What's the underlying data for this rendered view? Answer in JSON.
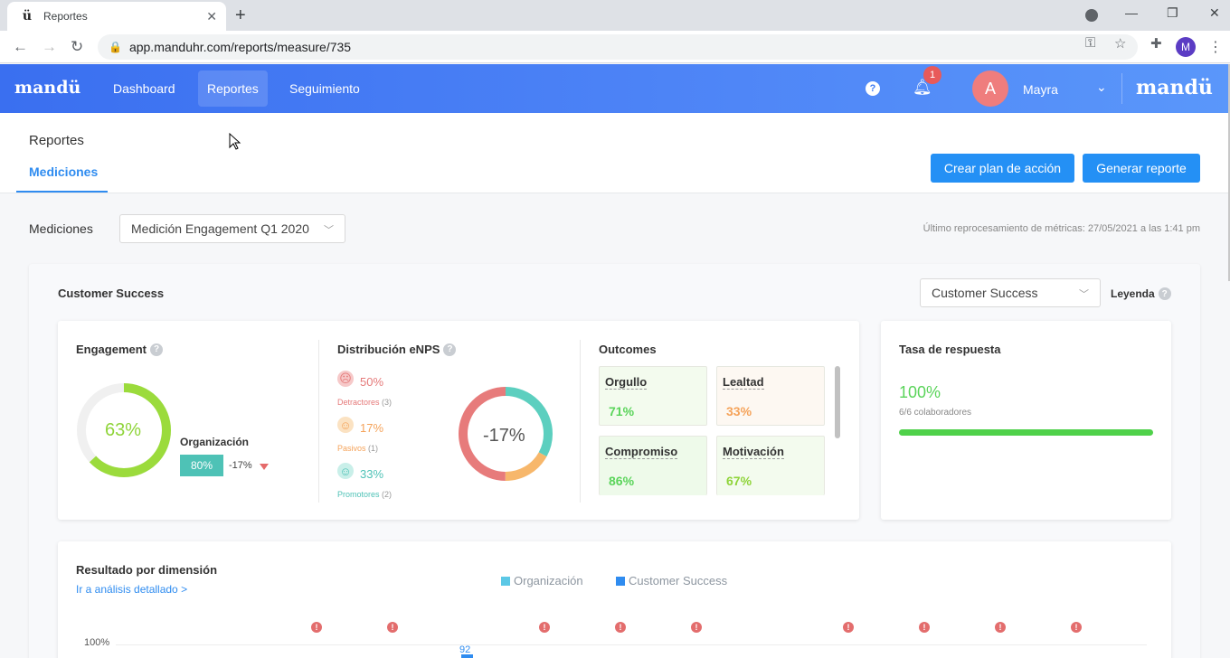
{
  "browser": {
    "tab_title": "Reportes",
    "tab_favicon": "ü",
    "url": "app.manduhr.com/reports/measure/735",
    "profile_initial": "M"
  },
  "header": {
    "logo": "mandü",
    "nav": [
      {
        "label": "Dashboard"
      },
      {
        "label": "Reportes"
      },
      {
        "label": "Seguimiento"
      }
    ],
    "notifications_count": "1",
    "user_initial": "A",
    "user_name": "Mayra",
    "brand_logo": "mandü"
  },
  "page": {
    "title": "Reportes",
    "tab": "Mediciones",
    "btn_action_plan": "Crear plan de acción",
    "btn_report": "Generar reporte"
  },
  "filter": {
    "label": "Mediciones",
    "measure_value": "Medición Engagement Q1 2020",
    "last_processed": "Último reprocesamiento de métricas: 27/05/2021 a las 1:41 pm"
  },
  "team": {
    "title": "Customer Success",
    "select_value": "Customer Success",
    "legend_label": "Leyenda"
  },
  "engagement": {
    "title": "Engagement",
    "value": "63%",
    "value_fraction": 0.63,
    "org_label": "Organización",
    "org_value": "80%",
    "org_delta": "-17%"
  },
  "enps": {
    "title": "Distribución eNPS",
    "center": "-17%",
    "items": [
      {
        "pct": "50%",
        "label": "Detractores",
        "count": "(3)"
      },
      {
        "pct": "17%",
        "label": "Pasivos",
        "count": "(1)"
      },
      {
        "pct": "33%",
        "label": "Promotores",
        "count": "(2)"
      }
    ],
    "shares": [
      0.5,
      0.17,
      0.33
    ]
  },
  "outcomes": {
    "title": "Outcomes",
    "items": [
      {
        "name": "Orgullo",
        "value": "71%"
      },
      {
        "name": "Lealtad",
        "value": "33%"
      },
      {
        "name": "Compromiso",
        "value": "86%"
      },
      {
        "name": "Motivación",
        "value": "67%"
      }
    ]
  },
  "response_rate": {
    "title": "Tasa de respuesta",
    "value": "100%",
    "sub": "6/6 colaboradores",
    "fraction": 1.0
  },
  "dimensions": {
    "title": "Resultado por dimensión",
    "link": "Ir a análisis detallado >",
    "legend": [
      "Organización",
      "Customer Success"
    ],
    "y_tick": "100%",
    "first_bar_value": "92"
  },
  "colors": {
    "brand_blue": "#3a6ff0",
    "primary_button": "#2490f5",
    "green": "#5ad45a",
    "orange": "#f5a35a",
    "red": "#e57a7a",
    "teal": "#4ec2b6",
    "legend_org": "#5cc8e6",
    "legend_cs": "#2f8cf0"
  }
}
